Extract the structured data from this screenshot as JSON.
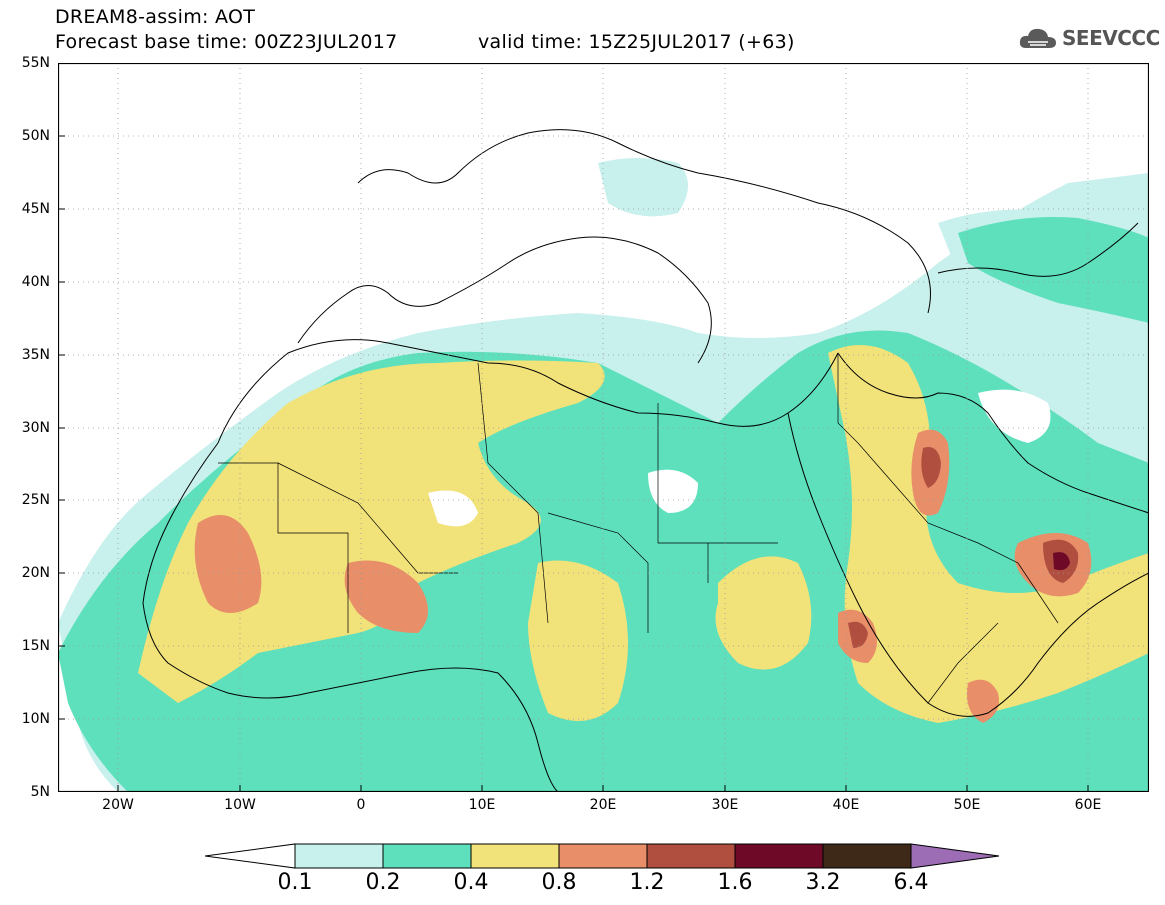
{
  "header": {
    "line1": "DREAM8-assim: AOT",
    "line2": "Forecast base time: 00Z23JUL2017",
    "valid": "valid time: 15Z25JUL2017 (+63)"
  },
  "logo": {
    "text": "SEEVCCC",
    "icon": "cloud-icon"
  },
  "map": {
    "lat_labels": [
      "55N",
      "50N",
      "45N",
      "40N",
      "35N",
      "30N",
      "25N",
      "20N",
      "15N",
      "10N",
      "5N"
    ],
    "lon_labels": [
      "20W",
      "10W",
      "0",
      "10E",
      "20E",
      "30E",
      "40E",
      "50E",
      "60E"
    ],
    "colors": {
      "c1": "#c8f0ec",
      "c2": "#5ee0bc",
      "c3": "#f2e27a",
      "c4": "#e88e68",
      "c5": "#b04e40",
      "c6": "#6e0a28",
      "c7": "#3e2818",
      "c8": "#9c6cb4"
    }
  },
  "colorbar": {
    "labels": [
      "0.1",
      "0.2",
      "0.4",
      "0.8",
      "1.2",
      "1.6",
      "3.2",
      "6.4"
    ]
  }
}
